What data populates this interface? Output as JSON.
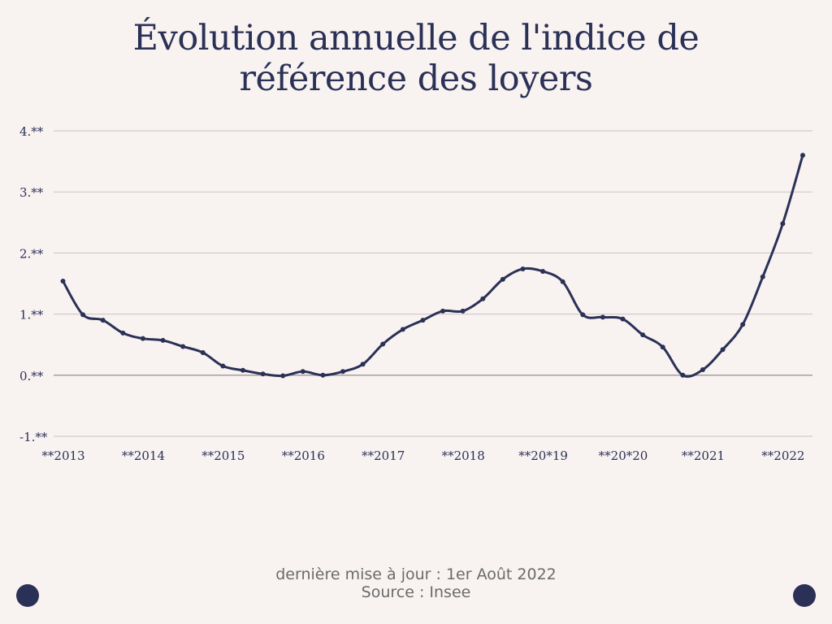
{
  "title_line1": "Évolution annuelle de l'indice de",
  "title_line2": "référence des loyers",
  "footer": {
    "updated": "dernière mise à jour : 1er Août 2022",
    "source": "Source : Insee"
  },
  "colors": {
    "background": "#f8f2f1",
    "line": "#2b3156",
    "grid": "#c9c3c3",
    "text": "#2b3156",
    "footer_text": "#6b6b6b",
    "corner_dots": "#2b3156"
  },
  "chart_data": {
    "type": "line",
    "title": "Évolution annuelle de l'indice de référence des loyers",
    "xlabel": "",
    "ylabel": "",
    "ylim": [
      -1,
      4
    ],
    "yticks": [
      4,
      3,
      2,
      1,
      0,
      -1
    ],
    "ytick_labels": [
      "4.**",
      "3.**",
      "2.**",
      "1.**",
      "0.**",
      "-1.**"
    ],
    "xtick_labels": [
      "**2013",
      "**2014",
      "**2015",
      "**2016",
      "**2017",
      "**2018",
      "**20*19",
      "**20*20",
      "**2021",
      "**2022"
    ],
    "xtick_years": [
      2013,
      2014,
      2015,
      2016,
      2017,
      2018,
      2019,
      2020,
      2021,
      2022
    ],
    "grid": true,
    "legend": "none",
    "series": [
      {
        "x": [
          2013.0,
          2013.25,
          2013.5,
          2013.75,
          2014.0,
          2014.25,
          2014.5,
          2014.75,
          2015.0,
          2015.25,
          2015.5,
          2015.75,
          2016.0,
          2016.25,
          2016.5,
          2016.75,
          2017.0,
          2017.25,
          2017.5,
          2017.75,
          2018.0,
          2018.25,
          2018.5,
          2018.75,
          2019.0,
          2019.25,
          2019.5,
          2019.75,
          2020.0,
          2020.25,
          2020.5,
          2020.75,
          2021.0,
          2021.25,
          2021.5,
          2021.75,
          2022.0,
          2022.25
        ],
        "values": [
          1.54,
          0.99,
          0.9,
          0.69,
          0.6,
          0.57,
          0.47,
          0.37,
          0.15,
          0.08,
          0.02,
          -0.01,
          0.06,
          0.0,
          0.06,
          0.18,
          0.51,
          0.75,
          0.9,
          1.05,
          1.05,
          1.25,
          1.57,
          1.74,
          1.7,
          1.53,
          0.99,
          0.95,
          0.92,
          0.66,
          0.46,
          0.0,
          0.09,
          0.42,
          0.83,
          1.61,
          2.48,
          3.6
        ]
      }
    ]
  }
}
